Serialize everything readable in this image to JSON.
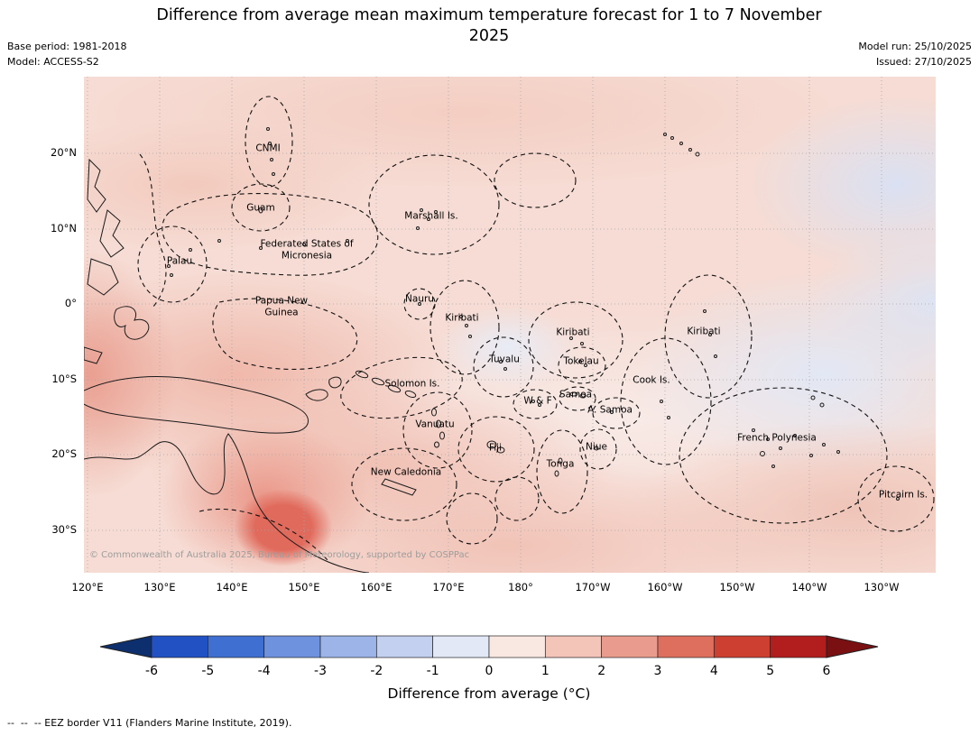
{
  "header": {
    "title": "Difference from average mean maximum temperature forecast for 1 to 7 November 2025",
    "base_period": "Base period: 1981-2018",
    "model": "Model: ACCESS-S2",
    "model_run": "Model run: 25/10/2025",
    "issued": "Issued: 27/10/2025"
  },
  "map": {
    "copyright": "© Commonwealth of Australia 2025, Bureau of Meteorology, supported by COSPPac",
    "labels": [
      "CNMI",
      "Guam",
      "Marshall Is.",
      "Federated States of Micronesia",
      "Palau",
      "Papua New Guinea",
      "Nauru",
      "Kiribati",
      "Kiribati",
      "Kiribati",
      "Tuvalu",
      "Tokelau",
      "Solomon Is.",
      "Cook Is.",
      "Samoa",
      "W & F",
      "A. Samoa",
      "Vanuatu",
      "French Polynesia",
      "Fiji",
      "Niue",
      "Tonga",
      "New Caledonia",
      "Pitcairn Is."
    ]
  },
  "axes": {
    "lat": [
      "20°N",
      "10°N",
      "0°",
      "10°S",
      "20°S",
      "30°S"
    ],
    "lon": [
      "120°E",
      "130°E",
      "140°E",
      "150°E",
      "160°E",
      "170°E",
      "180°",
      "170°W",
      "160°W",
      "150°W",
      "140°W",
      "130°W"
    ]
  },
  "colorbar": {
    "label": "Difference from average (°C)",
    "ticks": [
      "-6",
      "-5",
      "-4",
      "-3",
      "-2",
      "-1",
      "0",
      "1",
      "2",
      "3",
      "4",
      "5",
      "6"
    ],
    "colors": [
      "#2251c4",
      "#3f6fd1",
      "#6f92de",
      "#9cb4e8",
      "#c3d0f0",
      "#e3e8f7",
      "#f9e7e2",
      "#f3c4b8",
      "#e99c8d",
      "#de6f5e",
      "#cd3f31",
      "#b21d1d"
    ],
    "arrow_left": "#0d2f6e",
    "arrow_right": "#7a1012"
  },
  "footnote": {
    "dash_sample": "--  --  --",
    "text": " EEZ border V11 (Flanders Marine Institute, 2019)."
  }
}
